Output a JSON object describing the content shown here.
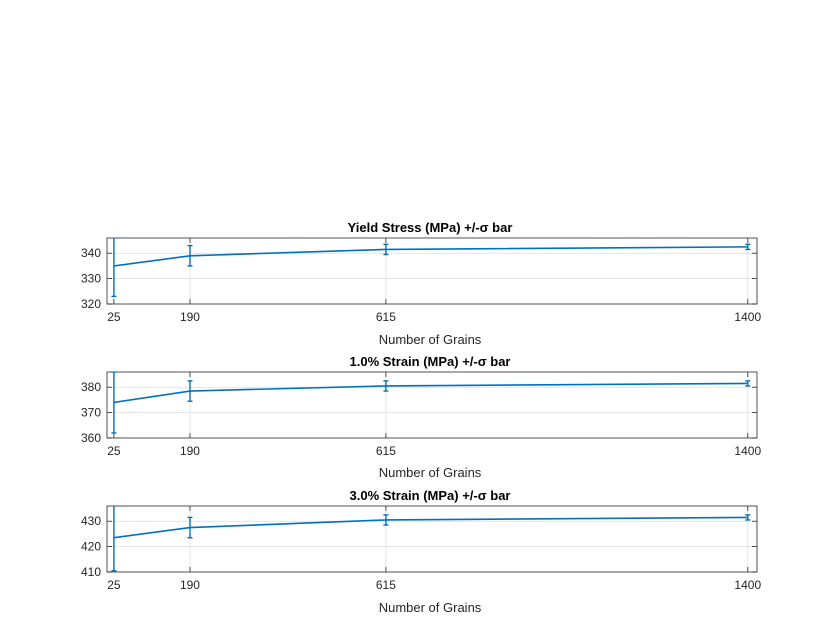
{
  "chart_data": [
    {
      "type": "line",
      "title": "Yield Stress (MPa) +/-σ bar",
      "xlabel": "Number of Grains",
      "ylabel": "",
      "x": [
        25,
        190,
        615,
        1400
      ],
      "xticks": [
        25,
        190,
        615,
        1400
      ],
      "xlim": [
        10,
        1420
      ],
      "ylim": [
        320,
        346
      ],
      "yticks": [
        320,
        330,
        340
      ],
      "grid": true,
      "series": [
        {
          "values": [
            335,
            339,
            341.5,
            342.5
          ],
          "err": [
            12,
            4,
            2,
            1
          ]
        }
      ]
    },
    {
      "type": "line",
      "title": "1.0% Strain (MPa) +/-σ bar",
      "xlabel": "Number of Grains",
      "ylabel": "",
      "x": [
        25,
        190,
        615,
        1400
      ],
      "xticks": [
        25,
        190,
        615,
        1400
      ],
      "xlim": [
        10,
        1420
      ],
      "ylim": [
        360,
        386
      ],
      "yticks": [
        360,
        370,
        380
      ],
      "grid": true,
      "series": [
        {
          "values": [
            374,
            378.5,
            380.5,
            381.5
          ],
          "err": [
            12,
            4,
            2,
            1
          ]
        }
      ]
    },
    {
      "type": "line",
      "title": "3.0% Strain (MPa) +/-σ bar",
      "xlabel": "Number of Grains",
      "ylabel": "",
      "x": [
        25,
        190,
        615,
        1400
      ],
      "xticks": [
        25,
        190,
        615,
        1400
      ],
      "xlim": [
        10,
        1420
      ],
      "ylim": [
        410,
        436
      ],
      "yticks": [
        410,
        420,
        430
      ],
      "grid": true,
      "series": [
        {
          "values": [
            423.5,
            427.5,
            430.5,
            431.5
          ],
          "err": [
            13,
            4,
            2,
            1
          ]
        }
      ]
    }
  ],
  "colors": {
    "series": "#0072BD"
  }
}
